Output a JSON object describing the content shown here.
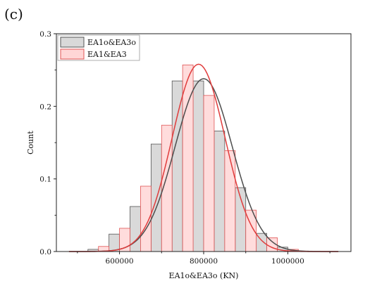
{
  "panel_label": "(c)",
  "chart_data": {
    "type": "bar",
    "xlabel": "EA1o&EA3o (KN)",
    "ylabel": "Count",
    "xlim": [
      450000,
      1150000
    ],
    "ylim": [
      0,
      0.3
    ],
    "x_ticks": [
      {
        "value": 600000,
        "label": "600000"
      },
      {
        "value": 800000,
        "label": "800000"
      },
      {
        "value": 1000000,
        "label": "1000000"
      }
    ],
    "y_ticks": [
      {
        "value": 0.0,
        "label": "0.0"
      },
      {
        "value": 0.1,
        "label": "0.1"
      },
      {
        "value": 0.2,
        "label": "0.2"
      },
      {
        "value": 0.3,
        "label": "0.3"
      }
    ],
    "grid": false,
    "legend_position": "top-left",
    "series": [
      {
        "name": "EA1o&EA3o",
        "fill": "#d9d9d9",
        "stroke": "#555555",
        "curve_color": "#4d4d4d",
        "bin_width": 25000,
        "bin_starts": [
          525000,
          575000,
          625000,
          675000,
          725000,
          775000,
          825000,
          875000,
          925000,
          975000
        ],
        "values": [
          0.003,
          0.024,
          0.062,
          0.148,
          0.235,
          0.235,
          0.166,
          0.088,
          0.025,
          0.006
        ],
        "normal_fit": {
          "mean": 800000,
          "sd": 68000,
          "peak": 0.238
        }
      },
      {
        "name": "EA1&EA3",
        "fill": "#ffd6d6",
        "stroke": "#e05555",
        "curve_color": "#e03c3c",
        "bin_width": 25000,
        "bin_starts": [
          550000,
          600000,
          650000,
          700000,
          750000,
          800000,
          850000,
          900000,
          950000,
          1000000
        ],
        "values": [
          0.007,
          0.032,
          0.09,
          0.174,
          0.257,
          0.215,
          0.139,
          0.057,
          0.019,
          0.003
        ],
        "normal_fit": {
          "mean": 788000,
          "sd": 63000,
          "peak": 0.258
        }
      }
    ]
  }
}
